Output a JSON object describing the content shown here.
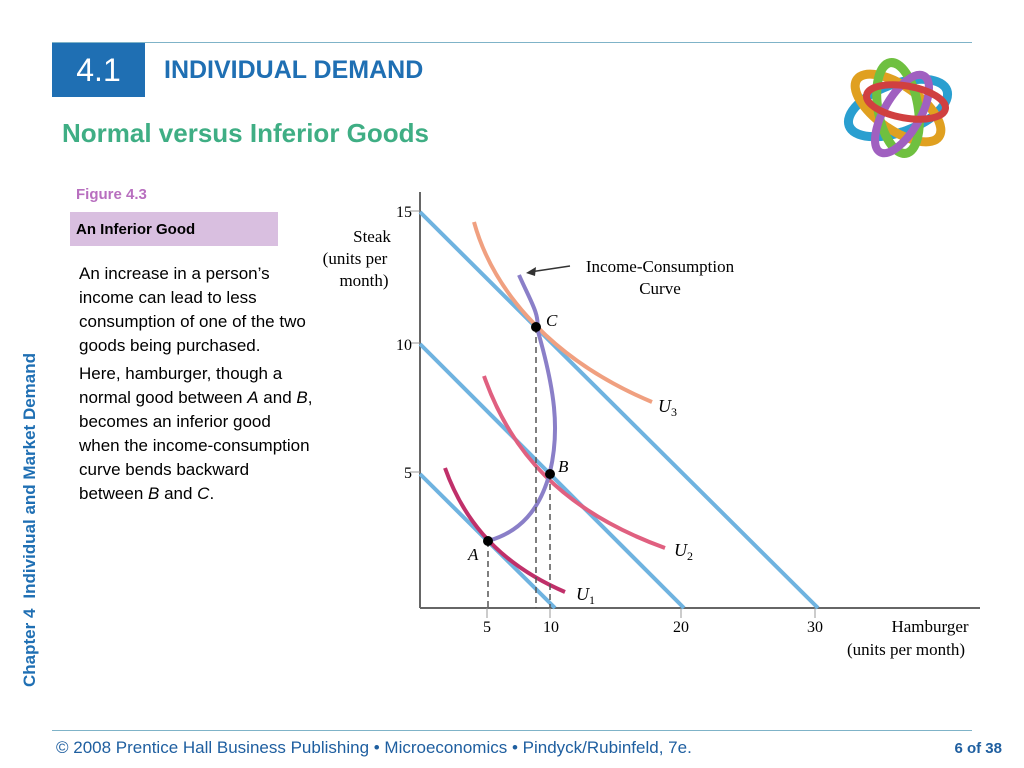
{
  "header": {
    "section_number": "4.1",
    "section_title": "INDIVIDUAL DEMAND",
    "subtitle": "Normal versus Inferior Goods"
  },
  "side_label": {
    "chapter": "Chapter 4",
    "title": "Individual and Market Demand"
  },
  "figure": {
    "label": "Figure 4.3",
    "caption": "An Inferior Good"
  },
  "body": {
    "p1": "An increase in a person’s income can lead to less consumption of one of the two goods being purchased.",
    "p2_a": "Here, hamburger, though a normal good between ",
    "p2_A": "A",
    "p2_b": " and ",
    "p2_B": "B",
    "p2_c": ", becomes an inferior good when the income-consumption curve bends backward between ",
    "p2_B2": "B",
    "p2_d": " and ",
    "p2_C": "C",
    "p2_e": "."
  },
  "footer": {
    "text": "© 2008 Prentice Hall Business Publishing  •  Microeconomics  •  Pindyck/Rubinfeld, 7e.",
    "page_current": "6",
    "page_of": "of 38"
  },
  "diagram": {
    "y_axis_title": [
      "Steak",
      "(units per",
      "month)"
    ],
    "x_axis_title": [
      "Hamburger",
      "(units per month)"
    ],
    "y_ticks": [
      "15",
      "10",
      "5"
    ],
    "x_ticks": [
      "5",
      "10",
      "20",
      "30"
    ],
    "icc_label": [
      "Income-Consumption",
      "Curve"
    ],
    "points": {
      "A": "A",
      "B": "B",
      "C": "C"
    },
    "curves": {
      "U1": "U",
      "U1_sub": "1",
      "U2": "U",
      "U2_sub": "2",
      "U3": "U",
      "U3_sub": "3"
    }
  },
  "colors": {
    "accent_blue": "#1f6fb3",
    "subtitle_green": "#3fae84",
    "figure_purple": "#b86fbf",
    "caption_bg": "#d9bfe0",
    "budget_line": "#6fb3e0",
    "u1": "#c0306a",
    "u2": "#e06080",
    "u3": "#f0a080",
    "icc": "#8a7fc8"
  },
  "logo_icon": "interlocking-rings-logo"
}
